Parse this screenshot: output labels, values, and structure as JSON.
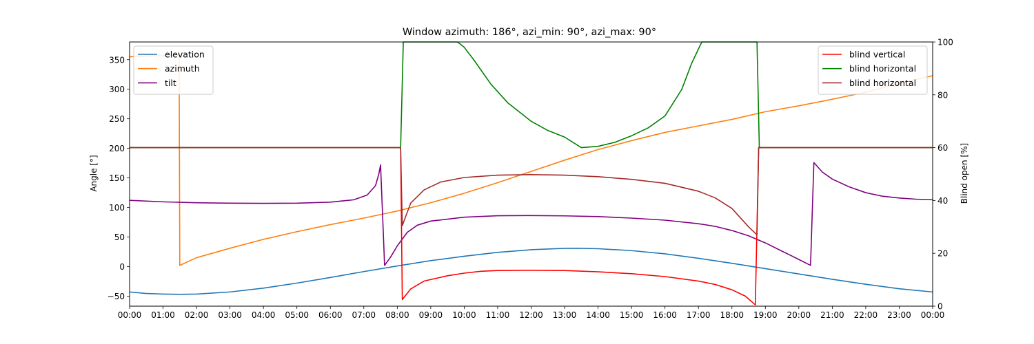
{
  "chart_data": {
    "type": "line",
    "title": "Window azimuth: 186°, azi_min: 90°, azi_max: 90°",
    "ylabel": "Angle [°]",
    "y2label": "Blind open [%]",
    "xlabel": "",
    "x_ticks": [
      "00:00",
      "01:00",
      "02:00",
      "03:00",
      "04:00",
      "05:00",
      "06:00",
      "07:00",
      "08:00",
      "09:00",
      "10:00",
      "11:00",
      "12:00",
      "13:00",
      "14:00",
      "15:00",
      "16:00",
      "17:00",
      "18:00",
      "19:00",
      "20:00",
      "21:00",
      "22:00",
      "23:00",
      "00:00"
    ],
    "xlim": [
      0,
      24
    ],
    "ylim": [
      -67,
      380
    ],
    "y_ticks": [
      -50,
      0,
      50,
      100,
      150,
      200,
      250,
      300,
      350
    ],
    "y2lim": [
      0,
      100
    ],
    "y2_ticks": [
      0,
      20,
      40,
      60,
      80,
      100
    ],
    "grid": false,
    "legend_left_position": "upper-left",
    "legend_right_position": "upper-right",
    "series": [
      {
        "name": "elevation",
        "axis": "left",
        "color": "#1f77b4",
        "points": [
          [
            0,
            -43
          ],
          [
            0.5,
            -45.5
          ],
          [
            1,
            -46.5
          ],
          [
            1.5,
            -47
          ],
          [
            2,
            -46.6
          ],
          [
            3,
            -43
          ],
          [
            4,
            -36.5
          ],
          [
            5,
            -28
          ],
          [
            6,
            -18.5
          ],
          [
            7,
            -8.5
          ],
          [
            8,
            1
          ],
          [
            9,
            10
          ],
          [
            10,
            17.5
          ],
          [
            11,
            24
          ],
          [
            12,
            28.5
          ],
          [
            13,
            30.8
          ],
          [
            13.4,
            31
          ],
          [
            14,
            30.2
          ],
          [
            15,
            27
          ],
          [
            16,
            21.5
          ],
          [
            17,
            14
          ],
          [
            18,
            5.5
          ],
          [
            19,
            -3.5
          ],
          [
            20,
            -12.5
          ],
          [
            21,
            -21.5
          ],
          [
            22,
            -30
          ],
          [
            23,
            -37.5
          ],
          [
            24,
            -43
          ]
        ]
      },
      {
        "name": "azimuth",
        "axis": "left",
        "color": "#ff7f0e",
        "points": [
          [
            0,
            355
          ],
          [
            1.2,
            357
          ],
          [
            1.48,
            358
          ],
          [
            1.5,
            2
          ],
          [
            2,
            15
          ],
          [
            3,
            31
          ],
          [
            4,
            46
          ],
          [
            5,
            59
          ],
          [
            6,
            71
          ],
          [
            7,
            82
          ],
          [
            8,
            94
          ],
          [
            9,
            108
          ],
          [
            10,
            124
          ],
          [
            11,
            142
          ],
          [
            12,
            161
          ],
          [
            13,
            180
          ],
          [
            14,
            198
          ],
          [
            15,
            213
          ],
          [
            16,
            227
          ],
          [
            17,
            238
          ],
          [
            18,
            249
          ],
          [
            19,
            262
          ],
          [
            20,
            272
          ],
          [
            21,
            283
          ],
          [
            22,
            295
          ],
          [
            23,
            310
          ],
          [
            24,
            323
          ]
        ]
      },
      {
        "name": "tilt",
        "axis": "left",
        "color": "#800080",
        "points": [
          [
            0,
            112
          ],
          [
            1,
            109.5
          ],
          [
            2,
            108
          ],
          [
            3,
            107.3
          ],
          [
            4,
            107
          ],
          [
            5,
            107.3
          ],
          [
            6,
            109
          ],
          [
            6.7,
            113
          ],
          [
            7.1,
            121
          ],
          [
            7.35,
            137
          ],
          [
            7.45,
            157
          ],
          [
            7.5,
            172
          ],
          [
            7.58,
            60
          ],
          [
            7.62,
            2
          ],
          [
            7.8,
            16
          ],
          [
            8,
            35
          ],
          [
            8.3,
            58
          ],
          [
            8.6,
            70
          ],
          [
            9,
            77
          ],
          [
            10,
            83.5
          ],
          [
            11,
            86
          ],
          [
            12,
            86.3
          ],
          [
            13,
            85.8
          ],
          [
            14,
            84.5
          ],
          [
            15,
            82
          ],
          [
            16,
            78.5
          ],
          [
            17,
            72.5
          ],
          [
            17.5,
            68
          ],
          [
            18,
            61
          ],
          [
            18.5,
            52
          ],
          [
            19,
            40
          ],
          [
            19.5,
            26
          ],
          [
            20,
            12
          ],
          [
            20.35,
            2
          ],
          [
            20.45,
            176
          ],
          [
            20.7,
            160
          ],
          [
            21,
            148
          ],
          [
            21.5,
            135
          ],
          [
            22,
            125
          ],
          [
            22.5,
            119
          ],
          [
            23,
            116
          ],
          [
            23.5,
            114
          ],
          [
            24,
            113
          ]
        ]
      },
      {
        "name": "blind vertical",
        "axis": "right",
        "color": "#ff0000",
        "points": [
          [
            0,
            60
          ],
          [
            8.1,
            60
          ],
          [
            8.15,
            2.5
          ],
          [
            8.4,
            6.5
          ],
          [
            8.8,
            9.5
          ],
          [
            9.5,
            11.5
          ],
          [
            10,
            12.5
          ],
          [
            10.5,
            13.2
          ],
          [
            11,
            13.5
          ],
          [
            12,
            13.6
          ],
          [
            13,
            13.5
          ],
          [
            14,
            13
          ],
          [
            15,
            12.3
          ],
          [
            16,
            11.2
          ],
          [
            17,
            9.5
          ],
          [
            17.5,
            8.2
          ],
          [
            18,
            6.2
          ],
          [
            18.4,
            3.8
          ],
          [
            18.7,
            0.5
          ],
          [
            18.8,
            60
          ],
          [
            24,
            60
          ]
        ]
      },
      {
        "name": "blind horizontal",
        "axis": "right",
        "color": "#008000",
        "points": [
          [
            0,
            60
          ],
          [
            8.1,
            60
          ],
          [
            8.18,
            100
          ],
          [
            9.8,
            100
          ],
          [
            10,
            98
          ],
          [
            10.3,
            93
          ],
          [
            10.8,
            84
          ],
          [
            11.3,
            77
          ],
          [
            12,
            70
          ],
          [
            12.5,
            66.5
          ],
          [
            13,
            64
          ],
          [
            13.5,
            60
          ],
          [
            14,
            60.5
          ],
          [
            14.5,
            62
          ],
          [
            15,
            64.5
          ],
          [
            15.5,
            67.5
          ],
          [
            16,
            72
          ],
          [
            16.5,
            82
          ],
          [
            16.8,
            92
          ],
          [
            17.1,
            100
          ],
          [
            18.75,
            100
          ],
          [
            18.82,
            60
          ],
          [
            24,
            60
          ]
        ]
      },
      {
        "name": "blind horizontal",
        "axis": "right",
        "color": "#a52a2a",
        "points": [
          [
            0,
            60
          ],
          [
            8.1,
            60
          ],
          [
            8.15,
            30.5
          ],
          [
            8.4,
            39
          ],
          [
            8.8,
            44
          ],
          [
            9.3,
            47
          ],
          [
            10,
            48.7
          ],
          [
            11,
            49.6
          ],
          [
            12,
            49.8
          ],
          [
            13,
            49.6
          ],
          [
            14,
            49
          ],
          [
            15,
            48
          ],
          [
            16,
            46.5
          ],
          [
            17,
            43.5
          ],
          [
            17.5,
            41
          ],
          [
            18,
            37
          ],
          [
            18.5,
            30
          ],
          [
            18.75,
            27
          ],
          [
            18.8,
            60
          ],
          [
            24,
            60
          ]
        ]
      }
    ]
  }
}
